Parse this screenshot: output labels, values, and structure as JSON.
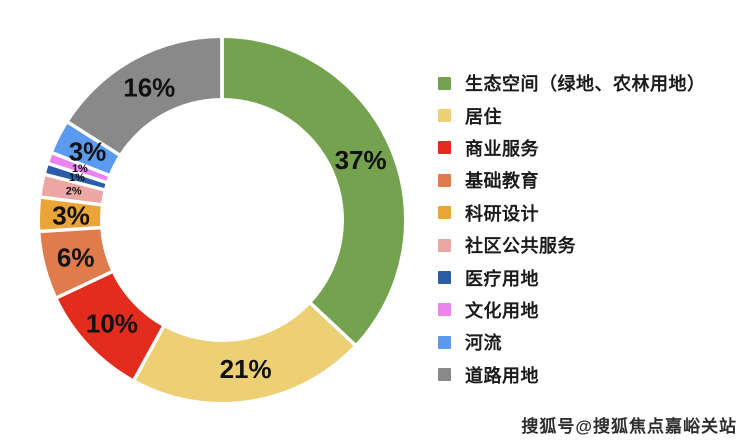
{
  "chart_data": {
    "type": "pie",
    "subtype": "donut",
    "title": "",
    "legend_position": "right",
    "start_angle_deg": 0,
    "direction": "clockwise",
    "categories": [
      "生态空间（绿地、农林用地）",
      "居住",
      "商业服务",
      "基础教育",
      "科研设计",
      "社区公共服务",
      "医疗用地",
      "文化用地",
      "河流",
      "道路用地"
    ],
    "values": [
      37,
      21,
      10,
      6,
      3,
      2,
      1,
      1,
      3,
      16
    ],
    "labels": [
      "37%",
      "21%",
      "10%",
      "6%",
      "3%",
      "2%",
      "1%",
      "1%",
      "3%",
      "16%"
    ],
    "colors": [
      "#74A24E",
      "#EDD075",
      "#E22C1D",
      "#E07B4B",
      "#EAA437",
      "#ECA6A4",
      "#2B5CA8",
      "#ED84ED",
      "#5B9AEE",
      "#898989"
    ],
    "gap_color": "#FFFFFF"
  },
  "watermark": {
    "text": "搜狐号@搜狐焦点嘉峪关站"
  }
}
